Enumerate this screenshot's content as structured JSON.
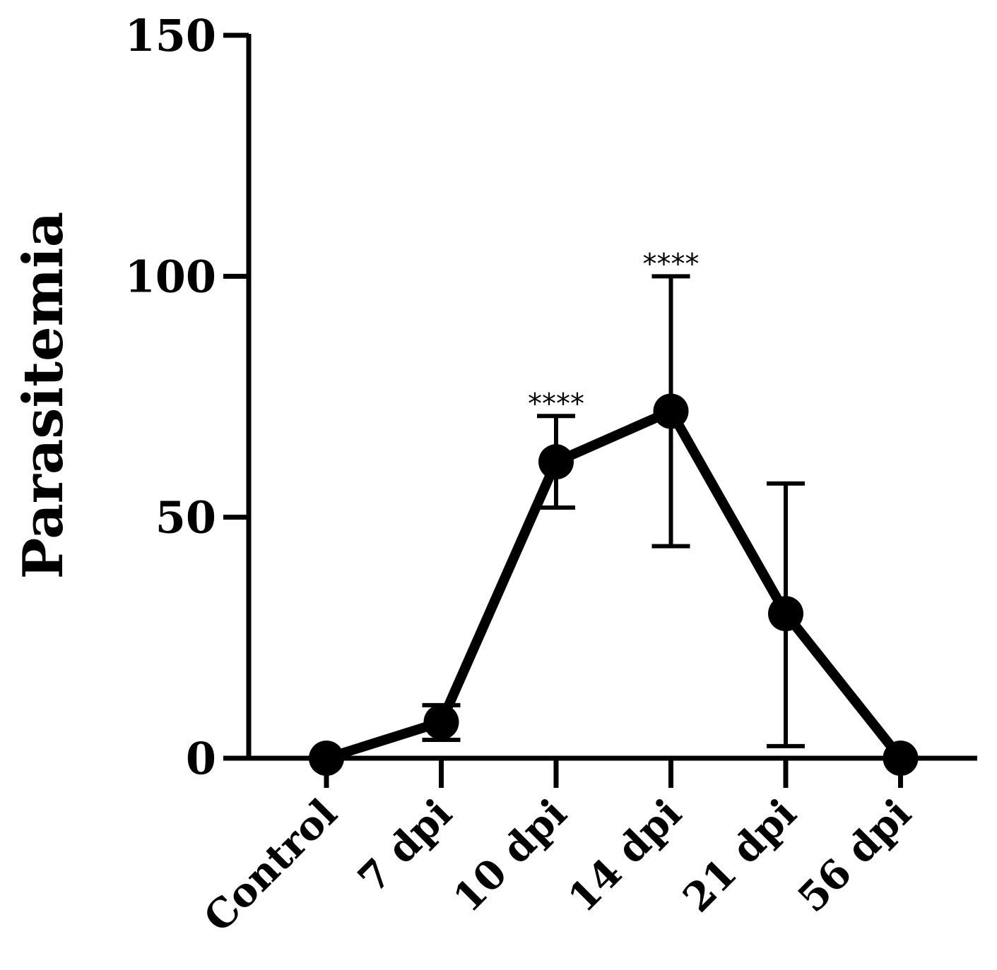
{
  "chart_data": {
    "type": "line",
    "title": "",
    "xlabel": "",
    "ylabel": "Parasitemia",
    "ylim": [
      0,
      150
    ],
    "yticks": [
      0,
      50,
      100,
      150
    ],
    "grid": false,
    "categories": [
      "Control",
      "7 dpi",
      "10 dpi",
      "14 dpi",
      "21 dpi",
      "56 dpi"
    ],
    "series": [
      {
        "values": [
          0,
          7.5,
          61.5,
          72,
          30,
          0
        ],
        "error_lower": [
          0,
          3.8,
          52,
          44,
          2.5,
          0
        ],
        "error_upper": [
          0,
          11,
          71,
          100,
          57,
          0
        ],
        "color": "#000000"
      }
    ],
    "annotations": [
      {
        "category": "10 dpi",
        "text": "****"
      },
      {
        "category": "14 dpi",
        "text": "****"
      }
    ]
  }
}
